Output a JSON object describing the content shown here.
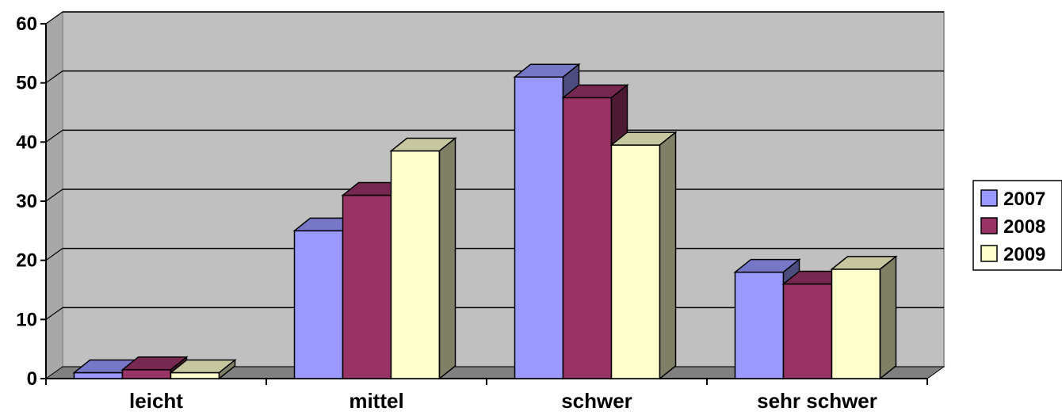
{
  "chart_data": {
    "type": "bar",
    "style": "3d-clustered-column",
    "categories": [
      "leicht",
      "mittel",
      "schwer",
      "sehr schwer"
    ],
    "series": [
      {
        "name": "2007",
        "color": "#9999ff",
        "values": [
          1,
          25,
          51,
          18
        ]
      },
      {
        "name": "2008",
        "color": "#993366",
        "values": [
          1.5,
          31,
          47.5,
          16
        ]
      },
      {
        "name": "2009",
        "color": "#ffffcc",
        "values": [
          1,
          38.5,
          39.5,
          18.5
        ]
      }
    ],
    "yticks": [
      "0",
      "10",
      "20",
      "30",
      "40",
      "50",
      "60"
    ],
    "ylim": [
      0,
      60
    ],
    "title": "",
    "xlabel": "",
    "ylabel": "",
    "grid": true,
    "legend_position": "right",
    "wall_color": "#c0c0c0",
    "floor_color": "#808080"
  }
}
